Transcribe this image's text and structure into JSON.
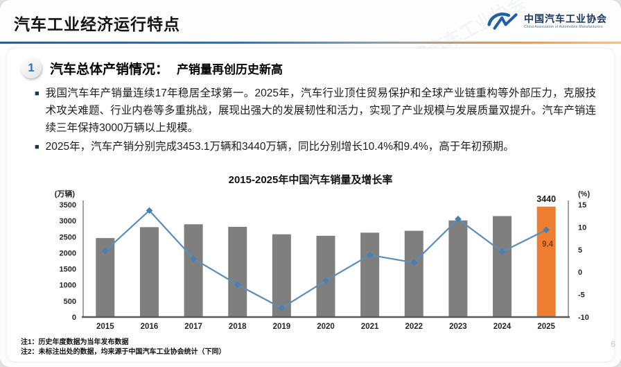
{
  "slide": {
    "header": {
      "title": "汽车工业经济运行特点"
    },
    "logo": {
      "org_cn": "中国汽车工业协会",
      "org_en": "China Association of Automobile Manufacturers"
    },
    "section": {
      "number": "1",
      "title": "汽车总体产销情况：",
      "subtitle": "产销量再创历史新高"
    },
    "bullets": [
      "我国汽车年产销量连续17年稳居全球第一。2025年，汽车行业顶住贸易保护和全球产业链重构等外部压力，克服技术攻关难题、行业内卷等多重挑战，展现出强大的发展韧性和活力，实现了产业规模与发展质量双提升。汽车产销连续三年保持3000万辆以上规模。",
      "2025年，汽车产销分别完成3453.1万辆和3440万辆，同比分别增长10.4%和9.4%，高于年初预期。"
    ],
    "footnotes": [
      "注1：历史年度数据为当年发布数据",
      "注2：未标注出处的数据，均来源于中国汽车工业协会统计（下同）"
    ],
    "page_number": "6",
    "watermark": "中国汽车工业协会"
  },
  "colors": {
    "bar": "#7f7f7f",
    "bar_highlight": "#ed7d31",
    "line": "#5b8db8",
    "marker": "#4a7fae",
    "axis": "#8c8c8c",
    "baseline": "#595959",
    "tick_text": "#262626",
    "annotation_sales": "#1a1a1a",
    "annotation_growth": "#843c0c",
    "brand_blue": "#17365d",
    "logo_blue": "#1f5fa8"
  },
  "chart_data": {
    "type": "bar",
    "title": "2015-2025年中国汽车销量及增长率",
    "categories": [
      "2015",
      "2016",
      "2017",
      "2018",
      "2019",
      "2020",
      "2021",
      "2022",
      "2023",
      "2024",
      "2025"
    ],
    "series": [
      {
        "name": "汽车销量",
        "type": "bar",
        "axis": "left",
        "unit": "万辆",
        "values": [
          2460,
          2800,
          2890,
          2810,
          2577,
          2531,
          2628,
          2686,
          3009,
          3144,
          3440
        ]
      },
      {
        "name": "增长率",
        "type": "line",
        "axis": "right",
        "unit": "%",
        "values": [
          4.7,
          13.7,
          3.0,
          -2.8,
          -8.0,
          -1.9,
          3.8,
          2.1,
          11.8,
          4.5,
          9.4
        ]
      }
    ],
    "left_axis": {
      "label": "(万辆)",
      "min": 0,
      "max": 3500,
      "step": 500
    },
    "right_axis": {
      "label": "(%)",
      "min": -10,
      "max": 15,
      "step": 5
    },
    "grid": false,
    "legend": "none",
    "highlight_last_bar": true,
    "annotations": [
      {
        "text": "3440",
        "series": "汽车销量",
        "category": "2025",
        "position": "above-bar"
      },
      {
        "text": "9.4",
        "series": "增长率",
        "category": "2025",
        "position": "below-point"
      }
    ]
  }
}
